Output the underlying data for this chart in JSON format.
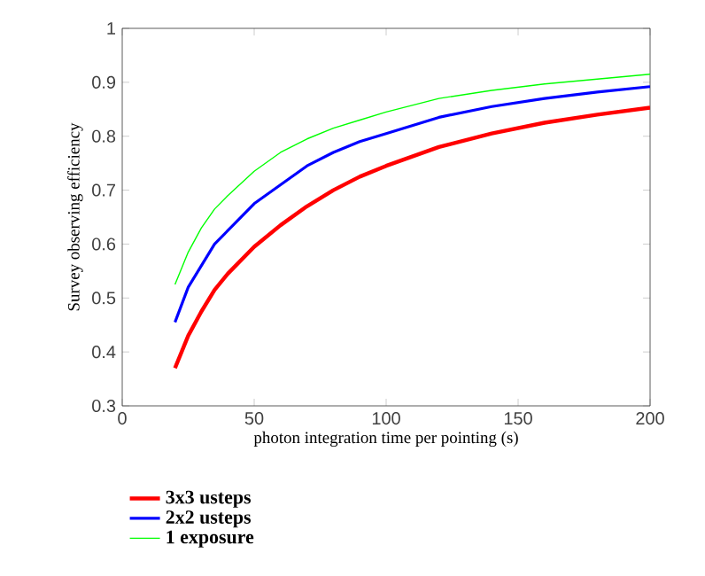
{
  "chart_data": {
    "type": "line",
    "xlabel": "photon integration time per pointing (s)",
    "ylabel": "Survey observing efficiency",
    "xlim": [
      0,
      200
    ],
    "ylim": [
      0.3,
      1
    ],
    "xticks": [
      0,
      50,
      100,
      150,
      200
    ],
    "yticks": [
      0.3,
      0.4,
      0.5,
      0.6,
      0.7,
      0.8,
      0.9,
      1
    ],
    "x": [
      20,
      25,
      30,
      35,
      40,
      50,
      60,
      70,
      80,
      90,
      100,
      120,
      140,
      160,
      180,
      200
    ],
    "series": [
      {
        "name": "3x3 usteps",
        "color": "#ff0000",
        "values": [
          0.37,
          0.43,
          0.475,
          0.515,
          0.545,
          0.595,
          0.635,
          0.67,
          0.7,
          0.725,
          0.745,
          0.78,
          0.805,
          0.825,
          0.84,
          0.853
        ]
      },
      {
        "name": "2x2 usteps",
        "color": "#0000ff",
        "values": [
          0.455,
          0.52,
          0.56,
          0.6,
          0.625,
          0.675,
          0.71,
          0.745,
          0.77,
          0.79,
          0.805,
          0.835,
          0.855,
          0.87,
          0.882,
          0.892
        ]
      },
      {
        "name": "1 exposure",
        "color": "#00ff00",
        "values": [
          0.525,
          0.585,
          0.63,
          0.665,
          0.69,
          0.735,
          0.77,
          0.795,
          0.815,
          0.83,
          0.845,
          0.87,
          0.885,
          0.897,
          0.906,
          0.915
        ]
      }
    ],
    "legend": "bottom",
    "grid": false,
    "marker": "none",
    "line_style": "solid"
  }
}
